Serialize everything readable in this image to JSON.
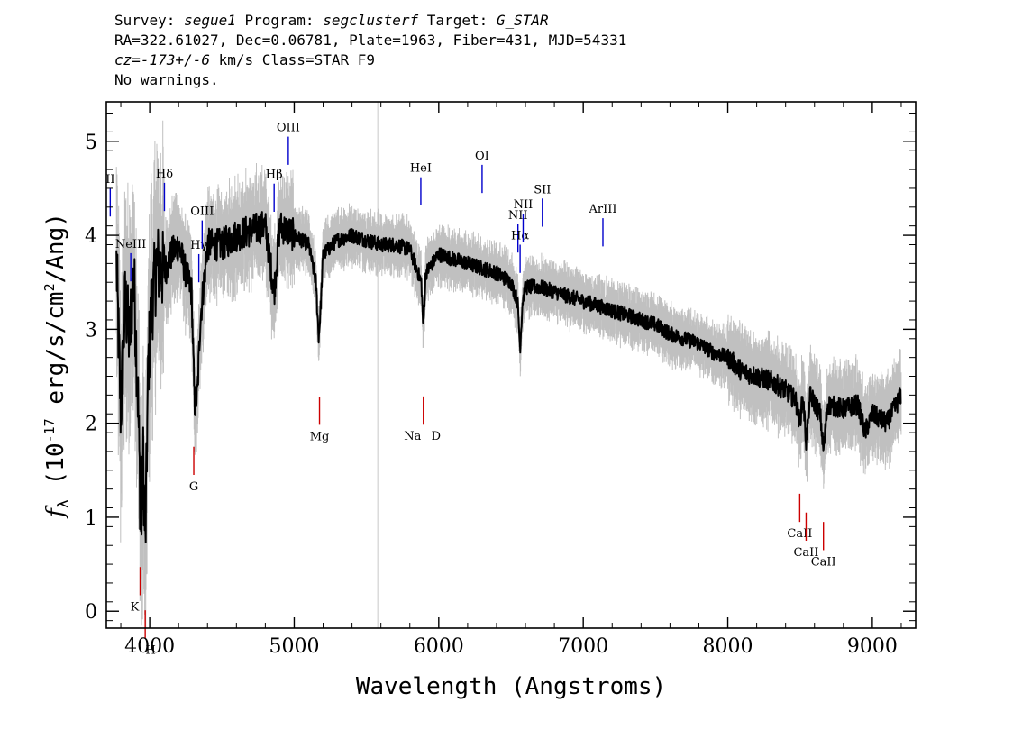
{
  "header": {
    "survey_prefix": "Survey: ",
    "survey": "segue1",
    "program_prefix": " Program: ",
    "program": "segclusterf",
    "target_prefix": " Target: ",
    "target": "G_STAR",
    "line2": "RA=322.61027, Dec=0.06781, Plate=1963, Fiber=431, MJD=54331",
    "cz": "cz=-173+/-6",
    "line3_rest": " km/s Class=STAR F9",
    "line4": "No warnings."
  },
  "chart_data": {
    "type": "line",
    "xlabel": "Wavelength (Angstroms)",
    "ylabel": "f_λ (10^-17 erg/s/cm^2/Ang)",
    "ylabel_parts": {
      "f": "f",
      "lambda": "λ",
      "open": " (10",
      "exp1": "-17",
      "mid": " erg/s/cm",
      "exp2": "2",
      "close": "/Ang)"
    },
    "xlim": [
      3700,
      9300
    ],
    "ylim": [
      -0.18,
      5.42
    ],
    "xticks": [
      4000,
      5000,
      6000,
      7000,
      8000,
      9000
    ],
    "xtick_labels": [
      "4000",
      "5000",
      "6000",
      "7000",
      "8000",
      "9000"
    ],
    "yticks": [
      0,
      1,
      2,
      3,
      4,
      5
    ],
    "ytick_labels": [
      "0",
      "1",
      "2",
      "3",
      "4",
      "5"
    ],
    "sky_line_x": 5578,
    "colors": {
      "flux": "#000000",
      "error": "#c0c0c0",
      "emission": "#0000cc",
      "absorption": "#cc0000",
      "sky": "#c8c8c8"
    },
    "flux_anchors": [
      [
        3770,
        3.7
      ],
      [
        3800,
        2.1
      ],
      [
        3830,
        3.3
      ],
      [
        3860,
        2.9
      ],
      [
        3890,
        3.6
      ],
      [
        3920,
        2.2
      ],
      [
        3940,
        0.8
      ],
      [
        3955,
        1.6
      ],
      [
        3970,
        0.7
      ],
      [
        3990,
        2.6
      ],
      [
        4010,
        3.2
      ],
      [
        4050,
        3.7
      ],
      [
        4100,
        3.6
      ],
      [
        4150,
        3.8
      ],
      [
        4200,
        3.9
      ],
      [
        4250,
        3.6
      ],
      [
        4290,
        3.4
      ],
      [
        4310,
        2.2
      ],
      [
        4330,
        2.3
      ],
      [
        4350,
        3.1
      ],
      [
        4400,
        3.9
      ],
      [
        4500,
        3.9
      ],
      [
        4600,
        4.0
      ],
      [
        4700,
        4.05
      ],
      [
        4800,
        4.1
      ],
      [
        4861,
        3.4
      ],
      [
        4900,
        4.1
      ],
      [
        5000,
        4.0
      ],
      [
        5100,
        3.9
      ],
      [
        5150,
        3.5
      ],
      [
        5170,
        2.9
      ],
      [
        5185,
        3.3
      ],
      [
        5200,
        3.8
      ],
      [
        5300,
        3.95
      ],
      [
        5400,
        4.0
      ],
      [
        5500,
        3.95
      ],
      [
        5600,
        3.9
      ],
      [
        5700,
        3.9
      ],
      [
        5800,
        3.85
      ],
      [
        5880,
        3.5
      ],
      [
        5893,
        3.0
      ],
      [
        5910,
        3.6
      ],
      [
        6000,
        3.8
      ],
      [
        6100,
        3.75
      ],
      [
        6200,
        3.7
      ],
      [
        6300,
        3.65
      ],
      [
        6400,
        3.6
      ],
      [
        6500,
        3.5
      ],
      [
        6545,
        3.3
      ],
      [
        6563,
        2.8
      ],
      [
        6580,
        3.3
      ],
      [
        6600,
        3.45
      ],
      [
        6700,
        3.45
      ],
      [
        6800,
        3.4
      ],
      [
        6900,
        3.35
      ],
      [
        7000,
        3.3
      ],
      [
        7100,
        3.25
      ],
      [
        7200,
        3.2
      ],
      [
        7300,
        3.15
      ],
      [
        7400,
        3.1
      ],
      [
        7500,
        3.05
      ],
      [
        7600,
        2.95
      ],
      [
        7700,
        2.9
      ],
      [
        7800,
        2.85
      ],
      [
        7900,
        2.75
      ],
      [
        8000,
        2.7
      ],
      [
        8100,
        2.55
      ],
      [
        8200,
        2.5
      ],
      [
        8300,
        2.45
      ],
      [
        8400,
        2.35
      ],
      [
        8470,
        2.25
      ],
      [
        8498,
        2.0
      ],
      [
        8520,
        2.3
      ],
      [
        8542,
        1.8
      ],
      [
        8570,
        2.3
      ],
      [
        8640,
        2.1
      ],
      [
        8662,
        1.7
      ],
      [
        8690,
        2.2
      ],
      [
        8800,
        2.15
      ],
      [
        8900,
        2.2
      ],
      [
        8950,
        1.9
      ],
      [
        9000,
        2.1
      ],
      [
        9100,
        2.0
      ],
      [
        9200,
        2.3
      ]
    ],
    "emission_lines": [
      {
        "label": "NeIII",
        "x": 3869
      },
      {
        "label": "II",
        "x": 3727
      },
      {
        "label": "Hδ",
        "x": 4102
      },
      {
        "label": "Hγ",
        "x": 4340
      },
      {
        "label": "OIII",
        "x": 4363
      },
      {
        "label": "Hβ",
        "x": 4861
      },
      {
        "label": "OIII",
        "x": 4959
      },
      {
        "label": "HeI",
        "x": 5876
      },
      {
        "label": "OI",
        "x": 6300
      },
      {
        "label": "NII",
        "x": 6548
      },
      {
        "label": "Hα",
        "x": 6563
      },
      {
        "label": "SII",
        "x": 6717
      },
      {
        "label": "NII",
        "x": 6584
      },
      {
        "label": "ArIII",
        "x": 7136
      }
    ],
    "absorption_lines": [
      {
        "label": "K",
        "x": 3934
      },
      {
        "label": "H",
        "x": 3969
      },
      {
        "label": "G",
        "x": 4305
      },
      {
        "label": "Mg",
        "x": 5175
      },
      {
        "label": "Na",
        "x": 5894
      },
      {
        "label": "D",
        "x": 5894
      },
      {
        "label": "CaII",
        "x": 8498
      },
      {
        "label": "CaII",
        "x": 8542
      },
      {
        "label": "CaII",
        "x": 8662
      }
    ]
  }
}
